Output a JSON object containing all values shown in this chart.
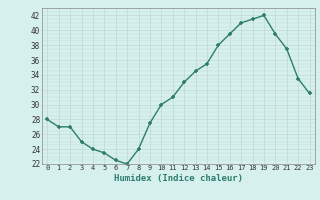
{
  "y_values": [
    28,
    27,
    27,
    25,
    24,
    23.5,
    22.5,
    22,
    24,
    27.5,
    30,
    31,
    33,
    34.5,
    35.5,
    38,
    39.5,
    41,
    41.5,
    42,
    39.5,
    37.5,
    33.5,
    31.5
  ],
  "line_color": "#2e7d6e",
  "marker_color": "#2e7d6e",
  "bg_color": "#d6f0ee",
  "grid_color": "#c0d8d4",
  "xlabel": "Humidex (Indice chaleur)",
  "ylim": [
    22,
    43
  ],
  "yticks": [
    22,
    24,
    26,
    28,
    30,
    32,
    34,
    36,
    38,
    40,
    42
  ],
  "xticks": [
    0,
    1,
    2,
    3,
    4,
    5,
    6,
    7,
    8,
    9,
    10,
    11,
    12,
    13,
    14,
    15,
    16,
    17,
    18,
    19,
    20,
    21,
    22,
    23
  ],
  "xlim": [
    -0.5,
    23.5
  ]
}
